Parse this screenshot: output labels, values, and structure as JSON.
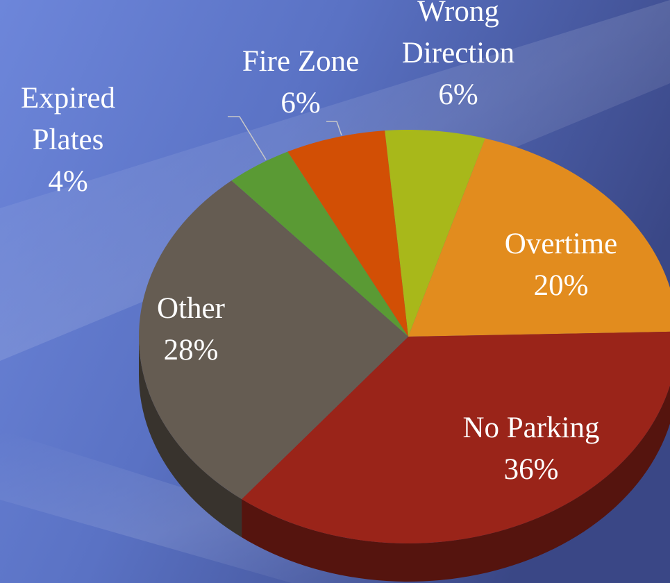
{
  "chart_data": {
    "type": "pie",
    "categories": [
      "Wrong Direction",
      "Overtime",
      "No Parking",
      "Other",
      "Expired Plates",
      "Fire Zone"
    ],
    "values": [
      6,
      20,
      36,
      28,
      4,
      6
    ],
    "value_labels": [
      "6%",
      "20%",
      "36%",
      "28%",
      "4%",
      "6%"
    ],
    "colors": [
      "#a8b81a",
      "#e28c1e",
      "#9a2419",
      "#655c52",
      "#5a9a34",
      "#d24f05"
    ]
  }
}
